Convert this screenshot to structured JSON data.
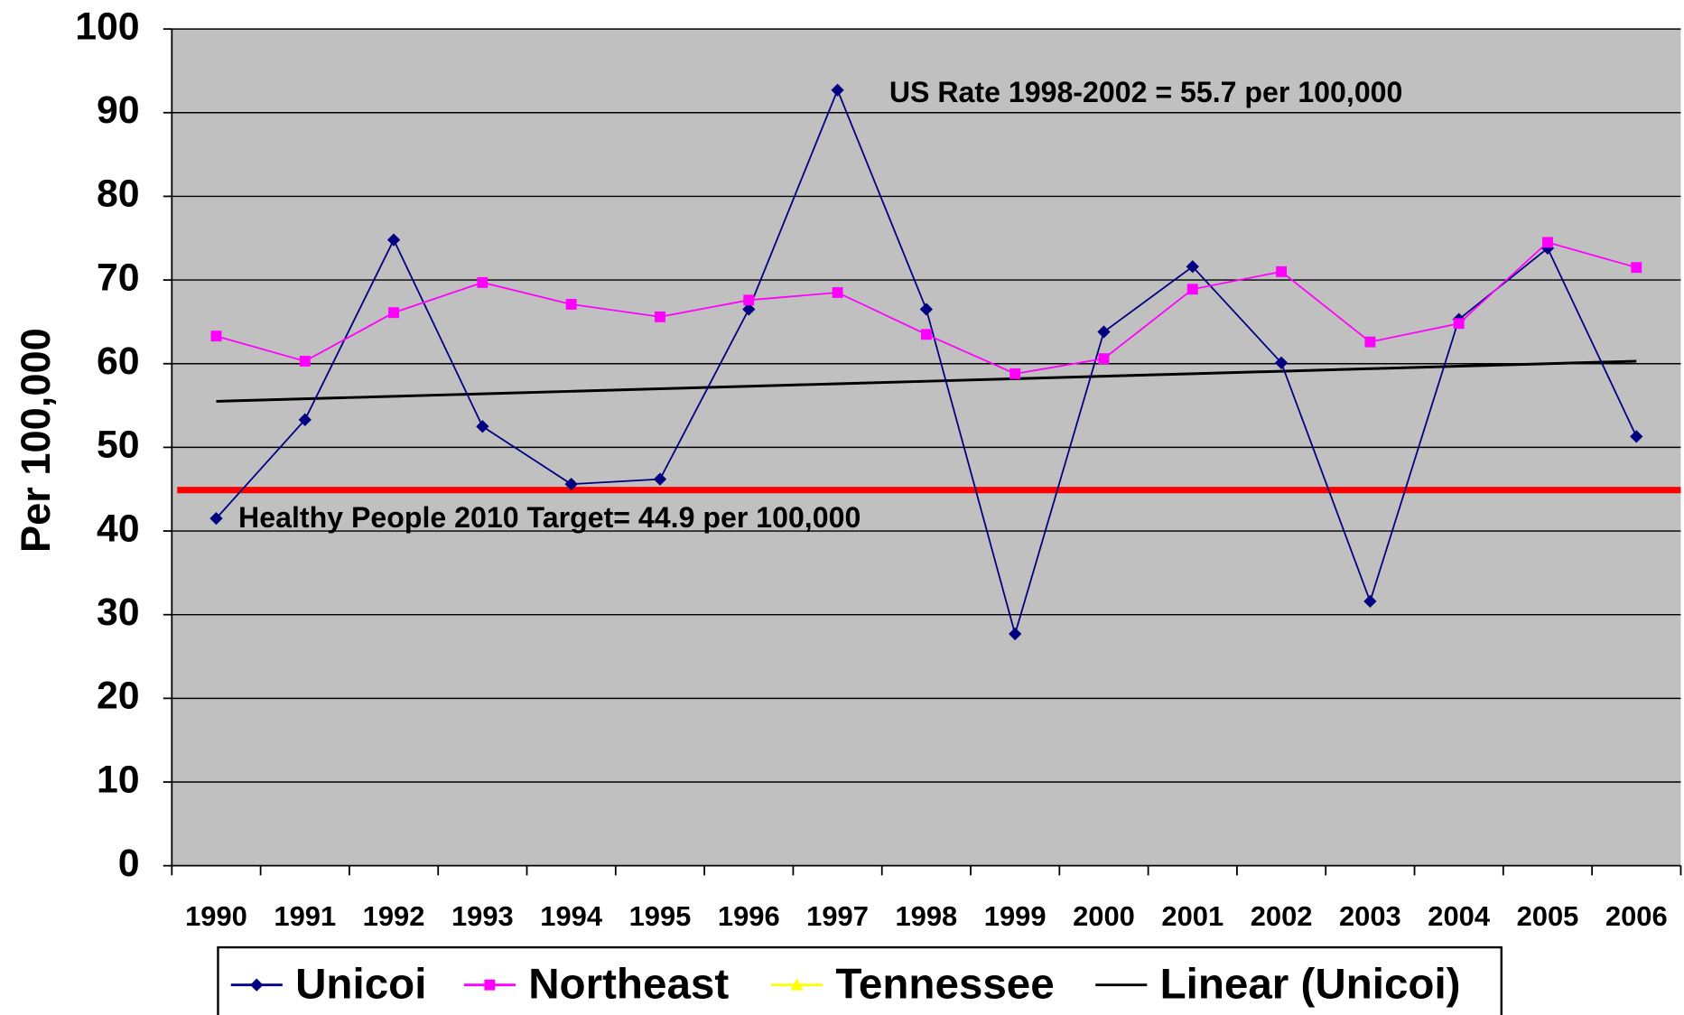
{
  "chart_data": {
    "type": "line",
    "y_label": "Per 100,000",
    "categories": [
      "1990",
      "1991",
      "1992",
      "1993",
      "1994",
      "1995",
      "1996",
      "1997",
      "1998",
      "1999",
      "2000",
      "2001",
      "2002",
      "2003",
      "2004",
      "2005",
      "2006"
    ],
    "series": [
      {
        "name": "Unicoi",
        "color": "#000080",
        "marker": "diamond",
        "values": [
          41.5,
          53.3,
          74.8,
          52.5,
          45.6,
          46.2,
          66.5,
          92.7,
          66.5,
          27.7,
          63.8,
          71.6,
          60.1,
          31.6,
          65.3,
          73.8,
          51.3
        ]
      },
      {
        "name": "Northeast",
        "color": "#ff00ff",
        "marker": "square",
        "values": [
          63.3,
          60.3,
          66.1,
          69.7,
          67.1,
          65.6,
          67.6,
          68.5,
          63.5,
          58.8,
          60.6,
          68.9,
          71.0,
          62.6,
          64.8,
          74.5,
          71.5
        ]
      },
      {
        "name": "Tennessee",
        "color": "#ffff00",
        "marker": "triangle",
        "values": [
          null,
          null,
          null,
          null,
          null,
          null,
          null,
          null,
          null,
          null,
          null,
          null,
          null,
          null,
          null,
          null,
          null
        ]
      },
      {
        "name": "Linear (Unicoi)",
        "color": "#000000",
        "marker": "none",
        "values": [
          55.5,
          55.8,
          56.1,
          56.4,
          56.7,
          57.0,
          57.3,
          57.6,
          57.9,
          58.2,
          58.5,
          58.8,
          59.1,
          59.4,
          59.7,
          60.0,
          60.3
        ]
      }
    ],
    "reference_line": {
      "value": 44.9,
      "color": "#ff0000",
      "label": "Healthy People 2010 Target= 44.9 per 100,000"
    },
    "annotations": [
      "US Rate 1998-2002 = 55.7 per 100,000"
    ],
    "ylim": [
      0,
      100
    ],
    "yticks": [
      0,
      10,
      20,
      30,
      40,
      50,
      60,
      70,
      80,
      90,
      100
    ],
    "grid": true,
    "plot_background": "#c0c0c0",
    "legend": "bottom"
  }
}
